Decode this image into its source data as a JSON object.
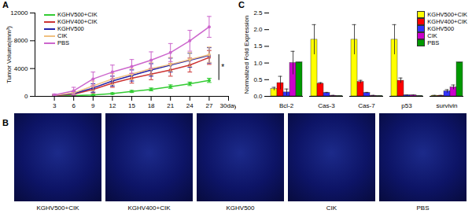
{
  "chart_data": [
    {
      "type": "line",
      "title": "A",
      "y_label": "Tumor Volume(mm³)",
      "x": [
        3,
        6,
        9,
        12,
        15,
        18,
        21,
        24,
        27
      ],
      "xlim": [
        0,
        30
      ],
      "xticks": [
        3,
        6,
        9,
        12,
        15,
        18,
        21,
        24,
        27,
        {
          "value": 30,
          "label": "30day"
        }
      ],
      "ylim": [
        0,
        12000
      ],
      "yticks": [
        0,
        4000,
        8000,
        12000
      ],
      "legend": "top-left",
      "marker": "circle",
      "series": [
        {
          "name": "KGHV500+CIK",
          "color": "#33cc33",
          "values": [
            50,
            100,
            200,
            400,
            700,
            1000,
            1400,
            1800,
            2300
          ],
          "errors": [
            30,
            50,
            80,
            100,
            150,
            200,
            250,
            250,
            300
          ]
        },
        {
          "name": "KGHV400+CIK",
          "color": "#cc3333",
          "values": [
            100,
            300,
            1000,
            1900,
            2600,
            3200,
            3800,
            4500,
            5600
          ],
          "errors": [
            60,
            200,
            500,
            600,
            700,
            800,
            900,
            1000,
            1000
          ]
        },
        {
          "name": "KGHV500",
          "color": "#2222aa",
          "values": [
            150,
            400,
            1200,
            2200,
            3000,
            3800,
            4500,
            5200,
            5900
          ],
          "errors": [
            80,
            250,
            600,
            700,
            800,
            900,
            1000,
            1000,
            1100
          ]
        },
        {
          "name": "CIK",
          "color": "#f0c080",
          "values": [
            150,
            500,
            1500,
            2500,
            3200,
            4000,
            4600,
            5300,
            6000
          ],
          "errors": [
            100,
            300,
            700,
            800,
            800,
            900,
            1000,
            1000,
            1100
          ]
        },
        {
          "name": "PBS",
          "color": "#cc66cc",
          "values": [
            200,
            800,
            2500,
            3500,
            4300,
            5200,
            6300,
            8000,
            10000
          ],
          "errors": [
            150,
            500,
            1000,
            1000,
            1000,
            1200,
            1300,
            1500,
            1500
          ]
        }
      ],
      "annotations": [
        {
          "text": "*",
          "x": 28.5,
          "y1": 2300,
          "y2": 6000
        }
      ]
    },
    {
      "type": "bar",
      "title": "C",
      "y_label": "Normalized Fold Expression",
      "categories": [
        "Bcl-2",
        "Cas-3",
        "Cas-7",
        "p53",
        "survivin"
      ],
      "ylim": [
        0,
        2.5
      ],
      "yticks": [
        {
          "value": 0,
          "label": "0.0"
        },
        {
          "value": 0.5,
          "label": "0.5"
        },
        {
          "value": 1,
          "label": "1.0"
        },
        {
          "value": 1.5,
          "label": "1.5"
        },
        {
          "value": 2,
          "label": "2.0"
        },
        {
          "value": 2.5,
          "label": "2.5"
        }
      ],
      "legend": "top-right",
      "series": [
        {
          "name": "KGHV500+CIK",
          "color": "#ffff00",
          "values": [
            0.22,
            1.7,
            1.7,
            1.7,
            0.02
          ],
          "errors": [
            0.05,
            0.45,
            0.45,
            0.45,
            0.01
          ]
        },
        {
          "name": "KGHV400+CIK",
          "color": "#ff0000",
          "values": [
            0.4,
            0.38,
            0.43,
            0.47,
            0.02
          ],
          "errors": [
            0.2,
            0.03,
            0.05,
            0.08,
            0.01
          ]
        },
        {
          "name": "KGHV500",
          "color": "#3333ff",
          "values": [
            0.12,
            0.1,
            0.1,
            0.03,
            0.15
          ],
          "errors": [
            0.1,
            0.02,
            0.02,
            0.01,
            0.05
          ]
        },
        {
          "name": "CIK",
          "color": "#cc00cc",
          "values": [
            1.0,
            0.02,
            0.02,
            0.03,
            0.27
          ],
          "errors": [
            0.35,
            0.01,
            0.01,
            0.01,
            0.07
          ]
        },
        {
          "name": "PBS",
          "color": "#009900",
          "values": [
            1.02,
            0.01,
            0.01,
            0.01,
            1.02
          ],
          "errors": [
            0,
            0,
            0,
            0,
            0
          ]
        }
      ]
    }
  ],
  "images": {
    "title": "B",
    "captions": [
      "KGHV500+CIK",
      "KGHV400+CIK",
      "KGHV500",
      "CIK",
      "PBS"
    ]
  }
}
